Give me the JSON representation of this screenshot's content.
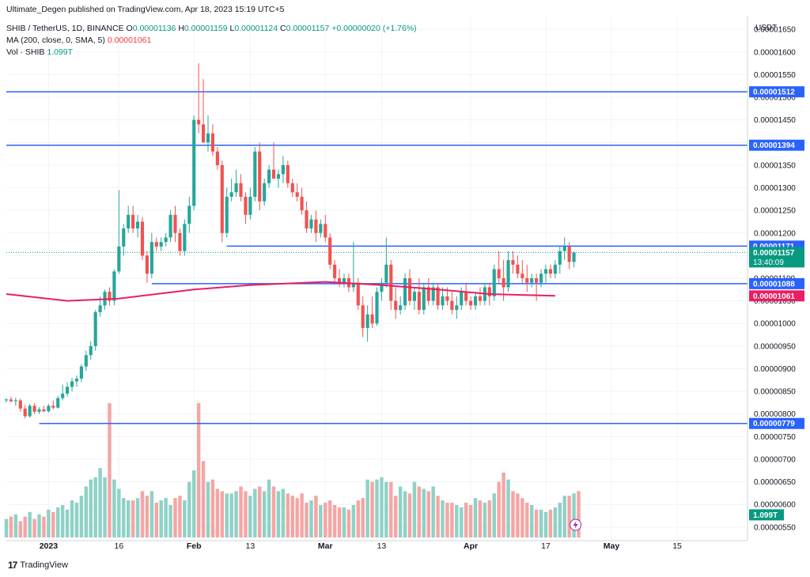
{
  "header": {
    "publisher": "Ultimate_Degen published on TradingView.com, Apr 18, 2023 15:19 UTC+5",
    "symbol_line": "SHIB / TetherUS, 1D, BINANCE",
    "ohlc": {
      "o_label": "O",
      "o": "0.00001136",
      "h_label": "H",
      "h": "0.00001159",
      "l_label": "L",
      "l": "0.00001124",
      "c_label": "C",
      "c": "0.00001157",
      "change": "+0.00000020 (+1.76%)"
    },
    "ma_label": "MA (200, close, 0, SMA, 5)",
    "ma_value": "0.00001061",
    "vol_label": "Vol · SHIB",
    "vol_value": "1.099T"
  },
  "brand": {
    "logo": "17",
    "name": "TradingView"
  },
  "colors": {
    "up": "#26a69a",
    "down": "#ef5350",
    "vol_up": "#8fd1c7",
    "vol_down": "#f4a6a4",
    "level_line": "#2962ff",
    "ma": "#e91e63",
    "price_tag": "#089981"
  },
  "chart_data": {
    "type": "candlestick",
    "y_axis": {
      "unit": "USDT",
      "ticks": [
        "0.00001650",
        "0.00001600",
        "0.00001550",
        "0.00001500",
        "0.00001450",
        "0.00001400",
        "0.00001350",
        "0.00001300",
        "0.00001250",
        "0.00001200",
        "0.00001150",
        "0.00001100",
        "0.00001050",
        "0.00001000",
        "0.00000950",
        "0.00000900",
        "0.00000850",
        "0.00000800",
        "0.00000750",
        "0.00000700",
        "0.00000650",
        "0.00000600",
        "0.00000550"
      ],
      "range": [
        5.2e-06,
        1.68e-05
      ]
    },
    "x_axis": {
      "ticks": [
        "2023",
        "16",
        "Feb",
        "13",
        "Mar",
        "13",
        "Apr",
        "17",
        "May",
        "15"
      ],
      "tick_dates": [
        "2023-01-01",
        "2023-01-16",
        "2023-02-01",
        "2023-02-13",
        "2023-03-01",
        "2023-03-13",
        "2023-04-01",
        "2023-04-17",
        "2023-05-01",
        "2023-05-15"
      ],
      "range": [
        "2022-12-23",
        "2023-05-30"
      ]
    },
    "level_lines": [
      {
        "label": "0.00001512",
        "value": 1.512e-05,
        "from": "2022-12-23"
      },
      {
        "label": "0.00001394",
        "value": 1.394e-05,
        "from": "2022-12-23"
      },
      {
        "label": "0.00001171",
        "value": 1.171e-05,
        "from": "2023-02-08"
      },
      {
        "label": "0.00001088",
        "value": 1.088e-05,
        "from": "2023-01-23"
      },
      {
        "label": "0.00000779",
        "value": 7.79e-06,
        "from": "2022-12-30"
      }
    ],
    "price_tag": {
      "value": "0.00001157",
      "countdown": "13:40:09"
    },
    "ma_tag": {
      "value": "0.00001061"
    },
    "volume_tag": {
      "value": "1.099T"
    },
    "start_date": "2022-12-23",
    "candles": [
      [
        8.3e-06,
        8.35e-06,
        8.25e-06,
        8.32e-06
      ],
      [
        8.32e-06,
        8.38e-06,
        8.26e-06,
        8.28e-06
      ],
      [
        8.28e-06,
        8.36e-06,
        8.18e-06,
        8.3e-06
      ],
      [
        8.3e-06,
        8.34e-06,
        8.05e-06,
        8.12e-06
      ],
      [
        8.12e-06,
        8.2e-06,
        7.9e-06,
        7.95e-06
      ],
      [
        7.95e-06,
        8.22e-06,
        7.92e-06,
        8.18e-06
      ],
      [
        8.18e-06,
        8.24e-06,
        8e-06,
        8.05e-06
      ],
      [
        8.05e-06,
        8.15e-06,
        8e-06,
        8.1e-06
      ],
      [
        8.1e-06,
        8.18e-06,
        8.04e-06,
        8.06e-06
      ],
      [
        8.06e-06,
        8.22e-06,
        8.03e-06,
        8.18e-06
      ],
      [
        8.18e-06,
        8.3e-06,
        8.1e-06,
        8.14e-06
      ],
      [
        8.14e-06,
        8.4e-06,
        8.12e-06,
        8.35e-06
      ],
      [
        8.35e-06,
        8.65e-06,
        8.3e-06,
        8.45e-06
      ],
      [
        8.45e-06,
        8.7e-06,
        8.38e-06,
        8.6e-06
      ],
      [
        8.6e-06,
        8.8e-06,
        8.5e-06,
        8.72e-06
      ],
      [
        8.72e-06,
        8.85e-06,
        8.6e-06,
        8.78e-06
      ],
      [
        8.78e-06,
        9.1e-06,
        8.7e-06,
        9.05e-06
      ],
      [
        9.05e-06,
        9.4e-06,
        8.95e-06,
        9.3e-06
      ],
      [
        9.3e-06,
        9.6e-06,
        9.2e-06,
        9.5e-06
      ],
      [
        9.5e-06,
        1.03e-05,
        9.4e-06,
        1.025e-05
      ],
      [
        1.025e-05,
        1.06e-05,
        1.015e-05,
        1.04e-05
      ],
      [
        1.04e-05,
        1.075e-05,
        1.03e-05,
        1.07e-05
      ],
      [
        1.07e-05,
        1.08e-05,
        1.04e-05,
        1.05e-05
      ],
      [
        1.05e-05,
        1.12e-05,
        1.04e-05,
        1.115e-05
      ],
      [
        1.115e-05,
        1.295e-05,
        1.11e-05,
        1.17e-05
      ],
      [
        1.17e-05,
        1.22e-05,
        1.15e-05,
        1.21e-05
      ],
      [
        1.21e-05,
        1.26e-05,
        1.2e-05,
        1.24e-05
      ],
      [
        1.24e-05,
        1.26e-05,
        1.2e-05,
        1.21e-05
      ],
      [
        1.21e-05,
        1.24e-05,
        1.19e-05,
        1.225e-05
      ],
      [
        1.225e-05,
        1.235e-05,
        1.14e-05,
        1.15e-05
      ],
      [
        1.15e-05,
        1.16e-05,
        1.09e-05,
        1.11e-05
      ],
      [
        1.11e-05,
        1.2e-05,
        1.1e-05,
        1.18e-05
      ],
      [
        1.18e-05,
        1.19e-05,
        1.16e-05,
        1.17e-05
      ],
      [
        1.17e-05,
        1.19e-05,
        1.16e-05,
        1.18e-05
      ],
      [
        1.18e-05,
        1.2e-05,
        1.17e-05,
        1.19e-05
      ],
      [
        1.19e-05,
        1.25e-05,
        1.18e-05,
        1.24e-05
      ],
      [
        1.24e-05,
        1.26e-05,
        1.18e-05,
        1.2e-05
      ],
      [
        1.2e-05,
        1.21e-05,
        1.15e-05,
        1.16e-05
      ],
      [
        1.16e-05,
        1.23e-05,
        1.15e-05,
        1.22e-05
      ],
      [
        1.22e-05,
        1.28e-05,
        1.2e-05,
        1.26e-05
      ],
      [
        1.26e-05,
        1.46e-05,
        1.25e-05,
        1.45e-05
      ],
      [
        1.45e-05,
        1.575e-05,
        1.42e-05,
        1.44e-05
      ],
      [
        1.44e-05,
        1.54e-05,
        1.4e-05,
        1.4e-05
      ],
      [
        1.4e-05,
        1.46e-05,
        1.38e-05,
        1.42e-05
      ],
      [
        1.42e-05,
        1.44e-05,
        1.37e-05,
        1.38e-05
      ],
      [
        1.38e-05,
        1.39e-05,
        1.34e-05,
        1.35e-05
      ],
      [
        1.35e-05,
        1.36e-05,
        1.18e-05,
        1.2e-05
      ],
      [
        1.2e-05,
        1.3e-05,
        1.19e-05,
        1.28e-05
      ],
      [
        1.28e-05,
        1.32e-05,
        1.27e-05,
        1.29e-05
      ],
      [
        1.29e-05,
        1.34e-05,
        1.28e-05,
        1.31e-05
      ],
      [
        1.31e-05,
        1.33e-05,
        1.27e-05,
        1.28e-05
      ],
      [
        1.28e-05,
        1.29e-05,
        1.22e-05,
        1.24e-05
      ],
      [
        1.24e-05,
        1.3e-05,
        1.23e-05,
        1.28e-05
      ],
      [
        1.28e-05,
        1.39e-05,
        1.27e-05,
        1.38e-05
      ],
      [
        1.38e-05,
        1.4e-05,
        1.25e-05,
        1.27e-05
      ],
      [
        1.27e-05,
        1.32e-05,
        1.26e-05,
        1.31e-05
      ],
      [
        1.31e-05,
        1.35e-05,
        1.3e-05,
        1.34e-05
      ],
      [
        1.34e-05,
        1.4e-05,
        1.32e-05,
        1.32e-05
      ],
      [
        1.32e-05,
        1.34e-05,
        1.3e-05,
        1.33e-05
      ],
      [
        1.33e-05,
        1.37e-05,
        1.31e-05,
        1.35e-05
      ],
      [
        1.35e-05,
        1.36e-05,
        1.3e-05,
        1.31e-05
      ],
      [
        1.31e-05,
        1.32e-05,
        1.28e-05,
        1.29e-05
      ],
      [
        1.29e-05,
        1.31e-05,
        1.27e-05,
        1.28e-05
      ],
      [
        1.28e-05,
        1.3e-05,
        1.24e-05,
        1.25e-05
      ],
      [
        1.25e-05,
        1.27e-05,
        1.2e-05,
        1.21e-05
      ],
      [
        1.21e-05,
        1.24e-05,
        1.2e-05,
        1.23e-05
      ],
      [
        1.23e-05,
        1.25e-05,
        1.18e-05,
        1.2e-05
      ],
      [
        1.2e-05,
        1.23e-05,
        1.19e-05,
        1.22e-05
      ],
      [
        1.22e-05,
        1.24e-05,
        1.18e-05,
        1.19e-05
      ],
      [
        1.19e-05,
        1.2e-05,
        1.12e-05,
        1.13e-05
      ],
      [
        1.13e-05,
        1.14e-05,
        1.09e-05,
        1.1e-05
      ],
      [
        1.1e-05,
        1.12e-05,
        1.08e-05,
        1.09e-05
      ],
      [
        1.09e-05,
        1.11e-05,
        1.08e-05,
        1.1e-05
      ],
      [
        1.1e-05,
        1.11e-05,
        1.07e-05,
        1.08e-05
      ],
      [
        1.08e-05,
        1.18e-05,
        1.07e-05,
        1.09e-05
      ],
      [
        1.09e-05,
        1.1e-05,
        1.03e-05,
        1.04e-05
      ],
      [
        1.04e-05,
        1.06e-05,
        9.7e-06,
        9.9e-06
      ],
      [
        9.9e-06,
        1.04e-05,
        9.6e-06,
        1.02e-05
      ],
      [
        1.02e-05,
        1.06e-05,
        9.9e-06,
        1e-05
      ],
      [
        1e-05,
        1.08e-05,
        9.95e-06,
        1.07e-05
      ],
      [
        1.07e-05,
        1.1e-05,
        1.05e-05,
        1.09e-05
      ],
      [
        1.09e-05,
        1.19e-05,
        1.08e-05,
        1.13e-05
      ],
      [
        1.13e-05,
        1.14e-05,
        1.03e-05,
        1.05e-05
      ],
      [
        1.05e-05,
        1.08e-05,
        1.01e-05,
        1.03e-05
      ],
      [
        1.03e-05,
        1.06e-05,
        1.02e-05,
        1.04e-05
      ],
      [
        1.04e-05,
        1.11e-05,
        1.03e-05,
        1.1e-05
      ],
      [
        1.1e-05,
        1.12e-05,
        1.04e-05,
        1.05e-05
      ],
      [
        1.05e-05,
        1.08e-05,
        1.03e-05,
        1.07e-05
      ],
      [
        1.07e-05,
        1.1e-05,
        1.02e-05,
        1.03e-05
      ],
      [
        1.03e-05,
        1.09e-05,
        1.02e-05,
        1.08e-05
      ],
      [
        1.08e-05,
        1.1e-05,
        1.04e-05,
        1.05e-05
      ],
      [
        1.05e-05,
        1.09e-05,
        1.04e-05,
        1.08e-05
      ],
      [
        1.08e-05,
        1.09e-05,
        1.03e-05,
        1.04e-05
      ],
      [
        1.04e-05,
        1.08e-05,
        1.03e-05,
        1.06e-05
      ],
      [
        1.06e-05,
        1.08e-05,
        1.04e-05,
        1.05e-05
      ],
      [
        1.05e-05,
        1.07e-05,
        1.02e-05,
        1.03e-05
      ],
      [
        1.03e-05,
        1.06e-05,
        1.01e-05,
        1.04e-05
      ],
      [
        1.04e-05,
        1.08e-05,
        1.03e-05,
        1.07e-05
      ],
      [
        1.07e-05,
        1.09e-05,
        1.04e-05,
        1.05e-05
      ],
      [
        1.05e-05,
        1.06e-05,
        1.03e-05,
        1.04e-05
      ],
      [
        1.04e-05,
        1.07e-05,
        1.03e-05,
        1.06e-05
      ],
      [
        1.06e-05,
        1.08e-05,
        1.04e-05,
        1.05e-05
      ],
      [
        1.05e-05,
        1.09e-05,
        1.04e-05,
        1.08e-05
      ],
      [
        1.08e-05,
        1.09e-05,
        1.04e-05,
        1.06e-05
      ],
      [
        1.06e-05,
        1.13e-05,
        1.05e-05,
        1.12e-05
      ],
      [
        1.12e-05,
        1.16e-05,
        1.09e-05,
        1.1e-05
      ],
      [
        1.1e-05,
        1.14e-05,
        1.05e-05,
        1.08e-05
      ],
      [
        1.08e-05,
        1.16e-05,
        1.07e-05,
        1.14e-05
      ],
      [
        1.14e-05,
        1.16e-05,
        1.11e-05,
        1.13e-05
      ],
      [
        1.13e-05,
        1.15e-05,
        1.1e-05,
        1.11e-05
      ],
      [
        1.11e-05,
        1.14e-05,
        1.09e-05,
        1.1e-05
      ],
      [
        1.1e-05,
        1.13e-05,
        1.07e-05,
        1.09e-05
      ],
      [
        1.09e-05,
        1.11e-05,
        1.08e-05,
        1.1e-05
      ],
      [
        1.1e-05,
        1.11e-05,
        1.05e-05,
        1.09e-05
      ],
      [
        1.09e-05,
        1.12e-05,
        1.08e-05,
        1.11e-05
      ],
      [
        1.11e-05,
        1.13e-05,
        1.09e-05,
        1.12e-05
      ],
      [
        1.12e-05,
        1.13e-05,
        1.1e-05,
        1.11e-05
      ],
      [
        1.11e-05,
        1.14e-05,
        1.1e-05,
        1.13e-05
      ],
      [
        1.13e-05,
        1.17e-05,
        1.11e-05,
        1.16e-05
      ],
      [
        1.16e-05,
        1.19e-05,
        1.14e-05,
        1.17e-05
      ],
      [
        1.17e-05,
        1.18e-05,
        1.12e-05,
        1.136e-05
      ],
      [
        1.136e-05,
        1.159e-05,
        1.124e-05,
        1.157e-05
      ]
    ],
    "volumes": [
      8,
      9,
      10,
      7,
      9,
      11,
      8,
      10,
      9,
      12,
      11,
      13,
      14,
      12,
      16,
      15,
      18,
      22,
      25,
      26,
      30,
      26,
      58,
      25,
      21,
      17,
      16,
      16,
      17,
      20,
      18,
      20,
      15,
      16,
      17,
      14,
      17,
      18,
      16,
      24,
      29,
      58,
      33,
      24,
      25,
      21,
      20,
      19,
      19,
      20,
      22,
      20,
      18,
      21,
      22,
      20,
      25,
      22,
      20,
      21,
      19,
      18,
      17,
      19,
      15,
      16,
      18,
      14,
      15,
      16,
      14,
      13,
      13,
      12,
      14,
      16,
      17,
      25,
      24,
      25,
      26,
      24,
      24,
      18,
      22,
      20,
      19,
      24,
      22,
      21,
      20,
      22,
      18,
      16,
      15,
      15,
      14,
      13,
      15,
      14,
      17,
      16,
      15,
      16,
      19,
      24,
      28,
      25,
      20,
      19,
      17,
      15,
      14,
      12,
      12,
      11,
      12,
      13,
      15,
      18,
      18,
      19,
      20
    ],
    "volume_range": [
      0,
      58
    ],
    "ma_curve": [
      [
        "2022-12-23",
        1.065e-05
      ],
      [
        "2023-01-05",
        1.05e-05
      ],
      [
        "2023-01-16",
        1.055e-05
      ],
      [
        "2023-02-01",
        1.075e-05
      ],
      [
        "2023-02-13",
        1.085e-05
      ],
      [
        "2023-03-01",
        1.092e-05
      ],
      [
        "2023-03-13",
        1.085e-05
      ],
      [
        "2023-03-25",
        1.075e-05
      ],
      [
        "2023-04-05",
        1.065e-05
      ],
      [
        "2023-04-19",
        1.061e-05
      ]
    ]
  }
}
